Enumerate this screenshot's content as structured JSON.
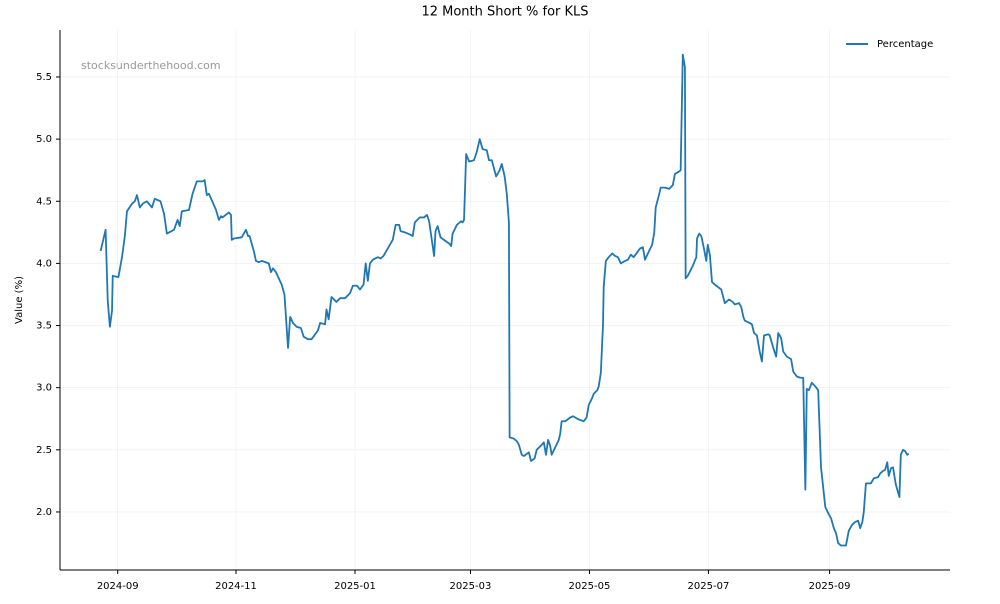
{
  "chart_data": {
    "type": "line",
    "title": "12 Month Short % for KLS",
    "y_label": "Value (%)",
    "watermark": "stocksunderthehood.com",
    "legend": "upper right",
    "grid": true,
    "xlim": [
      2024.586,
      2025.835
    ],
    "ylim": [
      1.533,
      5.878
    ],
    "xticks": [
      {
        "value": 2024.667,
        "label": "2024-09"
      },
      {
        "value": 2024.833,
        "label": "2024-11"
      },
      {
        "value": 2025.0,
        "label": "2025-01"
      },
      {
        "value": 2025.162,
        "label": "2025-03"
      },
      {
        "value": 2025.329,
        "label": "2025-05"
      },
      {
        "value": 2025.496,
        "label": "2025-07"
      },
      {
        "value": 2025.666,
        "label": "2025-09"
      }
    ],
    "yticks": [
      {
        "value": 2,
        "label": "2.0"
      },
      {
        "value": 2.5,
        "label": "2.5"
      },
      {
        "value": 3,
        "label": "3.0"
      },
      {
        "value": 3.5,
        "label": "3.5"
      },
      {
        "value": 4,
        "label": "4.0"
      },
      {
        "value": 4.5,
        "label": "4.5"
      },
      {
        "value": 5,
        "label": "5.0"
      },
      {
        "value": 5.5,
        "label": "5.5"
      }
    ],
    "x": [
      2024.643,
      2024.65,
      2024.653,
      2024.656,
      2024.659,
      2024.66,
      2024.668,
      2024.673,
      2024.677,
      2024.68,
      2024.687,
      2024.691,
      2024.694,
      2024.698,
      2024.702,
      2024.708,
      2024.715,
      2024.719,
      2024.727,
      2024.732,
      2024.736,
      2024.746,
      2024.751,
      2024.754,
      2024.757,
      2024.767,
      2024.772,
      2024.778,
      2024.786,
      2024.789,
      2024.792,
      2024.795,
      2024.805,
      2024.809,
      2024.812,
      2024.814,
      2024.823,
      2024.826,
      2024.827,
      2024.83,
      2024.841,
      2024.847,
      2024.85,
      2024.852,
      2024.858,
      2024.861,
      2024.865,
      2024.869,
      2024.879,
      2024.882,
      2024.885,
      2024.889,
      2024.893,
      2024.897,
      2024.901,
      2024.906,
      2024.909,
      2024.913,
      2024.918,
      2024.924,
      2024.928,
      2024.934,
      2024.939,
      2024.948,
      2024.951,
      2024.958,
      2024.96,
      2024.963,
      2024.967,
      2024.974,
      2024.979,
      2024.986,
      2024.993,
      2024.997,
      2025.003,
      2025.007,
      2025.012,
      2025.015,
      2025.018,
      2025.021,
      2025.025,
      2025.032,
      2025.036,
      2025.04,
      2025.045,
      2025.053,
      2025.057,
      2025.062,
      2025.064,
      2025.07,
      2025.078,
      2025.081,
      2025.084,
      2025.091,
      2025.097,
      2025.101,
      2025.104,
      2025.108,
      2025.111,
      2025.113,
      2025.116,
      2025.12,
      2025.127,
      2025.132,
      2025.135,
      2025.137,
      2025.143,
      2025.149,
      2025.151,
      2025.153,
      2025.156,
      2025.16,
      2025.167,
      2025.171,
      2025.175,
      2025.179,
      2025.185,
      2025.188,
      2025.192,
      2025.198,
      2025.203,
      2025.206,
      2025.21,
      2025.213,
      2025.216,
      2025.217,
      2025.223,
      2025.227,
      2025.23,
      2025.234,
      2025.237,
      2025.244,
      2025.247,
      2025.252,
      2025.255,
      2025.262,
      2025.265,
      2025.268,
      2025.271,
      2025.274,
      2025.276,
      2025.281,
      2025.286,
      2025.288,
      2025.29,
      2025.295,
      2025.302,
      2025.306,
      2025.312,
      2025.316,
      2025.321,
      2025.325,
      2025.328,
      2025.333,
      2025.335,
      2025.34,
      2025.342,
      2025.345,
      2025.348,
      2025.349,
      2025.352,
      2025.356,
      2025.361,
      2025.365,
      2025.369,
      2025.373,
      2025.379,
      2025.383,
      2025.387,
      2025.391,
      2025.4,
      2025.404,
      2025.407,
      2025.411,
      2025.417,
      2025.42,
      2025.422,
      2025.427,
      2025.429,
      2025.435,
      2025.441,
      2025.446,
      2025.449,
      2025.455,
      2025.457,
      2025.46,
      2025.463,
      2025.464,
      2025.467,
      2025.474,
      2025.479,
      2025.48,
      2025.483,
      2025.486,
      2025.49,
      2025.493,
      2025.495,
      2025.498,
      2025.501,
      2025.507,
      2025.514,
      2025.519,
      2025.525,
      2025.53,
      2025.533,
      2025.539,
      2025.542,
      2025.545,
      2025.547,
      2025.554,
      2025.557,
      2025.56,
      2025.564,
      2025.568,
      2025.571,
      2025.574,
      2025.58,
      2025.582,
      2025.587,
      2025.591,
      2025.594,
      2025.598,
      2025.601,
      2025.606,
      2025.612,
      2025.615,
      2025.62,
      2025.625,
      2025.629,
      2025.632,
      2025.634,
      2025.637,
      2025.641,
      2025.646,
      2025.65,
      2025.654,
      2025.66,
      2025.665,
      2025.668,
      2025.672,
      2025.675,
      2025.678,
      2025.682,
      2025.689,
      2025.693,
      2025.698,
      2025.702,
      2025.706,
      2025.709,
      2025.712,
      2025.714,
      2025.717,
      2025.724,
      2025.728,
      2025.734,
      2025.737,
      2025.741,
      2025.744,
      2025.747,
      2025.749,
      2025.752,
      2025.755,
      2025.759,
      2025.764,
      2025.766,
      2025.769,
      2025.772,
      2025.775,
      2025.777
    ],
    "series": [
      {
        "name": "Percentage",
        "color": "#1f77b4",
        "values": [
          4.1,
          4.27,
          3.7,
          3.49,
          3.62,
          3.9,
          3.89,
          4.05,
          4.22,
          4.42,
          4.48,
          4.5,
          4.55,
          4.45,
          4.48,
          4.5,
          4.45,
          4.52,
          4.5,
          4.4,
          4.24,
          4.27,
          4.35,
          4.3,
          4.42,
          4.43,
          4.56,
          4.66,
          4.66,
          4.67,
          4.55,
          4.56,
          4.43,
          4.35,
          4.38,
          4.37,
          4.41,
          4.39,
          4.19,
          4.2,
          4.21,
          4.27,
          4.22,
          4.22,
          4.1,
          4.02,
          4.01,
          4.02,
          4.0,
          3.93,
          3.96,
          3.93,
          3.88,
          3.83,
          3.75,
          3.32,
          3.57,
          3.52,
          3.49,
          3.48,
          3.41,
          3.39,
          3.39,
          3.46,
          3.52,
          3.51,
          3.63,
          3.55,
          3.73,
          3.69,
          3.72,
          3.72,
          3.76,
          3.82,
          3.82,
          3.79,
          3.83,
          4.0,
          3.86,
          4.0,
          4.03,
          4.05,
          4.04,
          4.06,
          4.11,
          4.19,
          4.31,
          4.31,
          4.26,
          4.25,
          4.23,
          4.22,
          4.33,
          4.37,
          4.37,
          4.39,
          4.34,
          4.18,
          4.06,
          4.26,
          4.3,
          4.21,
          4.18,
          4.16,
          4.14,
          4.24,
          4.31,
          4.34,
          4.33,
          4.35,
          4.88,
          4.82,
          4.83,
          4.9,
          5.0,
          4.92,
          4.91,
          4.83,
          4.83,
          4.7,
          4.75,
          4.8,
          4.7,
          4.56,
          4.33,
          2.6,
          2.59,
          2.57,
          2.54,
          2.46,
          2.45,
          2.48,
          2.41,
          2.43,
          2.5,
          2.54,
          2.56,
          2.46,
          2.58,
          2.53,
          2.46,
          2.52,
          2.58,
          2.63,
          2.73,
          2.73,
          2.76,
          2.77,
          2.75,
          2.74,
          2.73,
          2.76,
          2.86,
          2.92,
          2.95,
          2.98,
          3.01,
          3.12,
          3.5,
          3.81,
          4.02,
          4.05,
          4.08,
          4.06,
          4.05,
          4.0,
          4.02,
          4.03,
          4.07,
          4.05,
          4.12,
          4.13,
          4.03,
          4.08,
          4.15,
          4.25,
          4.45,
          4.56,
          4.61,
          4.61,
          4.6,
          4.63,
          4.72,
          4.74,
          4.75,
          5.68,
          5.58,
          3.88,
          3.9,
          3.98,
          4.05,
          4.2,
          4.24,
          4.22,
          4.11,
          4.02,
          4.15,
          4.07,
          3.85,
          3.82,
          3.79,
          3.68,
          3.71,
          3.69,
          3.67,
          3.68,
          3.65,
          3.57,
          3.54,
          3.52,
          3.51,
          3.44,
          3.42,
          3.29,
          3.21,
          3.42,
          3.43,
          3.42,
          3.32,
          3.25,
          3.44,
          3.4,
          3.29,
          3.25,
          3.23,
          3.13,
          3.09,
          3.08,
          3.08,
          2.18,
          2.99,
          2.98,
          3.04,
          3.01,
          2.98,
          2.36,
          2.04,
          1.98,
          1.95,
          1.87,
          1.83,
          1.75,
          1.73,
          1.73,
          1.85,
          1.9,
          1.92,
          1.93,
          1.87,
          1.92,
          2.0,
          2.23,
          2.23,
          2.27,
          2.28,
          2.31,
          2.33,
          2.34,
          2.4,
          2.29,
          2.35,
          2.36,
          2.22,
          2.12,
          2.46,
          2.5,
          2.49,
          2.46,
          2.47
        ]
      }
    ]
  }
}
